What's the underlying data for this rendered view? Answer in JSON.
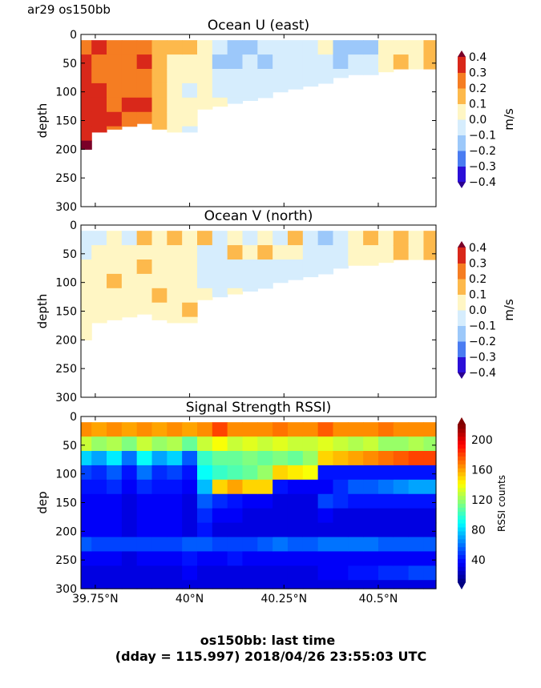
{
  "header": {
    "label": "ar29 os150bb"
  },
  "footer": {
    "line1": "os150bb: last time",
    "line2": "(dday = 115.997) 2018/04/26 23:55:03 UTC"
  },
  "chart_data": [
    {
      "type": "heatmap",
      "title": "Ocean U (east)",
      "ylabel": "depth",
      "xlim": [
        39.712,
        40.653
      ],
      "ylim": [
        300,
        0
      ],
      "xticks": [
        39.75,
        40.0,
        40.25,
        40.5
      ],
      "xtick_labels": [
        "",
        "",
        "",
        ""
      ],
      "yticks": [
        0,
        50,
        100,
        150,
        200,
        250,
        300
      ],
      "colorbar": {
        "label": "m/s",
        "levels": [
          -0.4,
          -0.3,
          -0.2,
          -0.1,
          0.0,
          0.1,
          0.2,
          0.3,
          0.4
        ],
        "tick_labels": [
          "0.4",
          "0.3",
          "0.2",
          "0.1",
          "0.0",
          "−0.1",
          "−0.2",
          "−0.3",
          "−0.4"
        ],
        "colors": [
          "#2a0fd8",
          "#4a7cf2",
          "#9cc8fa",
          "#d6edfd",
          "#fff6c4",
          "#fdb94c",
          "#f57d22",
          "#d9281a"
        ],
        "over": "#7a0028",
        "under": "#2a0090"
      },
      "lon": [
        39.72,
        39.76,
        39.8,
        39.84,
        39.88,
        39.92,
        39.96,
        40.0,
        40.04,
        40.08,
        40.12,
        40.16,
        40.2,
        40.24,
        40.28,
        40.32,
        40.36,
        40.4,
        40.44,
        40.48,
        40.52,
        40.56,
        40.6,
        40.64
      ],
      "top_depth": 10,
      "bin_size": 25,
      "bottom_depth": [
        200,
        170,
        165,
        160,
        155,
        165,
        170,
        170,
        130,
        125,
        120,
        115,
        110,
        100,
        95,
        90,
        85,
        75,
        70,
        70,
        65,
        60,
        60,
        60
      ],
      "values": [
        [
          0.25,
          0.3,
          0.35,
          0.35,
          0.35,
          0.3,
          0.35,
          0.42
        ],
        [
          0.3,
          0.25,
          0.25,
          0.3,
          0.3,
          0.35,
          0.3
        ],
        [
          0.2,
          0.25,
          0.25,
          0.25,
          0.25,
          0.3,
          0.25
        ],
        [
          0.25,
          0.25,
          0.25,
          0.25,
          0.3,
          0.25
        ],
        [
          0.25,
          0.3,
          0.25,
          0.25,
          0.3,
          0.25
        ],
        [
          0.15,
          0.15,
          0.15,
          0.15,
          0.15,
          0.15,
          0.15
        ],
        [
          0.15,
          0.05,
          0.05,
          0.05,
          0.05,
          0.05,
          0.05
        ],
        [
          0.15,
          0.05,
          0.05,
          -0.05,
          0.05,
          0.05,
          -0.05
        ],
        [
          0.05,
          0.05,
          0.05,
          0.05,
          0.05,
          0.05
        ],
        [
          -0.05,
          -0.15,
          -0.05,
          -0.05,
          0.05
        ],
        [
          -0.15,
          -0.15,
          -0.05,
          -0.05,
          -0.05
        ],
        [
          -0.15,
          -0.05,
          -0.05,
          -0.05,
          -0.05
        ],
        [
          -0.05,
          -0.15,
          -0.05,
          -0.05
        ],
        [
          -0.05,
          -0.05,
          -0.05,
          -0.05
        ],
        [
          -0.05,
          -0.05,
          -0.05,
          -0.05
        ],
        [
          -0.05,
          -0.05,
          -0.05,
          -0.05
        ],
        [
          0.05,
          -0.05,
          -0.05,
          -0.05
        ],
        [
          -0.15,
          -0.15,
          -0.05
        ],
        [
          -0.15,
          -0.05,
          -0.05
        ],
        [
          -0.15,
          -0.05,
          -0.05
        ],
        [
          0.05,
          0.05,
          0.05
        ],
        [
          0.05,
          0.15
        ],
        [
          0.05,
          0.05
        ],
        [
          0.15,
          0.15
        ]
      ]
    },
    {
      "type": "heatmap",
      "title": "Ocean V (north)",
      "ylabel": "depth",
      "xlim": [
        39.712,
        40.653
      ],
      "ylim": [
        300,
        0
      ],
      "xticks": [
        39.75,
        40.0,
        40.25,
        40.5
      ],
      "xtick_labels": [
        "",
        "",
        "",
        ""
      ],
      "yticks": [
        0,
        50,
        100,
        150,
        200,
        250,
        300
      ],
      "colorbar": {
        "label": "m/s",
        "levels": [
          -0.4,
          -0.3,
          -0.2,
          -0.1,
          0.0,
          0.1,
          0.2,
          0.3,
          0.4
        ],
        "tick_labels": [
          "0.4",
          "0.3",
          "0.2",
          "0.1",
          "0.0",
          "−0.1",
          "−0.2",
          "−0.3",
          "−0.4"
        ],
        "colors": [
          "#2a0fd8",
          "#4a7cf2",
          "#9cc8fa",
          "#d6edfd",
          "#fff6c4",
          "#fdb94c",
          "#f57d22",
          "#d9281a"
        ],
        "over": "#7a0028",
        "under": "#2a0090"
      },
      "lon": [
        39.72,
        39.76,
        39.8,
        39.84,
        39.88,
        39.92,
        39.96,
        40.0,
        40.04,
        40.08,
        40.12,
        40.16,
        40.2,
        40.24,
        40.28,
        40.32,
        40.36,
        40.4,
        40.44,
        40.48,
        40.52,
        40.56,
        40.6,
        40.64
      ],
      "top_depth": 10,
      "bin_size": 25,
      "bottom_depth": [
        200,
        170,
        165,
        160,
        155,
        165,
        170,
        170,
        130,
        125,
        120,
        115,
        110,
        100,
        95,
        90,
        85,
        75,
        70,
        70,
        65,
        60,
        60,
        60
      ],
      "values": [
        [
          -0.05,
          -0.05,
          0.05,
          0.05,
          0.05,
          0.05,
          0.05,
          0.05
        ],
        [
          -0.05,
          0.05,
          0.05,
          0.05,
          0.05,
          0.05,
          0.05
        ],
        [
          0.05,
          0.05,
          0.05,
          0.15,
          0.05,
          0.05,
          0.05
        ],
        [
          -0.05,
          0.05,
          0.05,
          0.05,
          0.05,
          0.05
        ],
        [
          0.15,
          0.05,
          0.15,
          0.05,
          0.05,
          0.05
        ],
        [
          0.05,
          0.05,
          0.05,
          0.05,
          0.15,
          0.05,
          0.05
        ],
        [
          0.15,
          0.05,
          0.05,
          0.05,
          0.05,
          0.05,
          0.05
        ],
        [
          0.05,
          0.05,
          0.05,
          0.05,
          0.05,
          0.15,
          0.05
        ],
        [
          0.15,
          -0.05,
          -0.05,
          -0.05,
          0.05,
          0.05
        ],
        [
          -0.05,
          -0.05,
          -0.05,
          -0.05,
          -0.05
        ],
        [
          0.05,
          0.15,
          -0.05,
          -0.05,
          0.05
        ],
        [
          -0.05,
          0.05,
          -0.05,
          -0.05,
          -0.05
        ],
        [
          0.05,
          0.15,
          -0.05,
          -0.05
        ],
        [
          -0.05,
          0.05,
          -0.05,
          -0.05
        ],
        [
          0.15,
          0.05,
          -0.05,
          -0.05
        ],
        [
          -0.05,
          -0.05,
          -0.05,
          -0.05
        ],
        [
          -0.15,
          -0.05,
          -0.05,
          -0.05
        ],
        [
          -0.05,
          -0.05,
          -0.05
        ],
        [
          0.05,
          0.05,
          0.05
        ],
        [
          0.15,
          0.05,
          0.05
        ],
        [
          0.05,
          0.05,
          0.05
        ],
        [
          0.15,
          0.15
        ],
        [
          0.05,
          0.05
        ],
        [
          0.15,
          0.15
        ]
      ]
    },
    {
      "type": "heatmap",
      "title": "Signal Strength RSSI)",
      "ylabel": "dep",
      "xlim": [
        39.712,
        40.653
      ],
      "ylim": [
        300,
        0
      ],
      "xticks": [
        39.75,
        40.0,
        40.25,
        40.5
      ],
      "xtick_labels": [
        "39.75°N",
        "40°N",
        "40.25°N",
        "40.5°N"
      ],
      "yticks": [
        0,
        50,
        100,
        150,
        200,
        250,
        300
      ],
      "colorbar": {
        "label": "RSSI counts",
        "range": [
          10,
          220
        ],
        "colormap": "jet",
        "ticks": [
          40,
          80,
          120,
          160,
          200
        ]
      },
      "lon": [
        39.72,
        39.76,
        39.8,
        39.84,
        39.88,
        39.92,
        39.96,
        40.0,
        40.04,
        40.08,
        40.12,
        40.16,
        40.2,
        40.24,
        40.28,
        40.32,
        40.36,
        40.4,
        40.44,
        40.48,
        40.52,
        40.56,
        40.6,
        40.64
      ],
      "top_depth": 10,
      "bin_size": 25,
      "bottom_depth": [
        300,
        300,
        300,
        300,
        300,
        300,
        300,
        300,
        300,
        300,
        300,
        300,
        300,
        300,
        300,
        300,
        300,
        300,
        300,
        300,
        300,
        300,
        300,
        300
      ],
      "values": [
        [
          165,
          130,
          80,
          50,
          40,
          35,
          35,
          35,
          55,
          35,
          30,
          30
        ],
        [
          160,
          120,
          70,
          45,
          40,
          35,
          35,
          35,
          50,
          35,
          30,
          30
        ],
        [
          165,
          125,
          85,
          55,
          45,
          35,
          35,
          35,
          50,
          35,
          30,
          30
        ],
        [
          160,
          115,
          60,
          40,
          35,
          30,
          30,
          30,
          50,
          30,
          30,
          30
        ],
        [
          165,
          130,
          90,
          60,
          45,
          35,
          35,
          35,
          50,
          35,
          30,
          30
        ],
        [
          160,
          120,
          70,
          45,
          40,
          35,
          35,
          35,
          50,
          35,
          30,
          30
        ],
        [
          165,
          125,
          80,
          50,
          40,
          35,
          35,
          35,
          50,
          35,
          30,
          30
        ],
        [
          160,
          110,
          55,
          40,
          35,
          30,
          30,
          30,
          55,
          40,
          35,
          30
        ],
        [
          165,
          130,
          100,
          90,
          75,
          55,
          45,
          40,
          55,
          35,
          30,
          30
        ],
        [
          180,
          140,
          110,
          100,
          150,
          45,
          35,
          30,
          50,
          35,
          30,
          30
        ],
        [
          165,
          130,
          110,
          105,
          160,
          40,
          35,
          30,
          50,
          40,
          30,
          30
        ],
        [
          165,
          135,
          115,
          110,
          150,
          35,
          30,
          30,
          50,
          35,
          30,
          30
        ],
        [
          165,
          130,
          110,
          120,
          150,
          35,
          30,
          30,
          55,
          35,
          30,
          30
        ],
        [
          170,
          135,
          115,
          150,
          40,
          30,
          30,
          30,
          60,
          35,
          30,
          30
        ],
        [
          165,
          130,
          110,
          145,
          35,
          30,
          30,
          30,
          55,
          35,
          30,
          30
        ],
        [
          165,
          130,
          120,
          140,
          35,
          30,
          30,
          30,
          55,
          35,
          30,
          30
        ],
        [
          175,
          135,
          150,
          40,
          35,
          50,
          35,
          30,
          60,
          35,
          35,
          30
        ],
        [
          165,
          130,
          155,
          40,
          45,
          45,
          30,
          30,
          60,
          35,
          35,
          30
        ],
        [
          165,
          125,
          160,
          40,
          55,
          40,
          30,
          30,
          60,
          35,
          40,
          30
        ],
        [
          165,
          130,
          165,
          40,
          55,
          40,
          30,
          30,
          60,
          35,
          40,
          30
        ],
        [
          170,
          120,
          170,
          40,
          60,
          40,
          30,
          30,
          55,
          35,
          45,
          30
        ],
        [
          165,
          120,
          175,
          40,
          65,
          40,
          30,
          30,
          55,
          35,
          45,
          30
        ],
        [
          165,
          125,
          180,
          40,
          70,
          40,
          30,
          30,
          55,
          35,
          50,
          30
        ],
        [
          165,
          120,
          180,
          40,
          70,
          40,
          30,
          30,
          55,
          35,
          50,
          30
        ]
      ]
    }
  ]
}
